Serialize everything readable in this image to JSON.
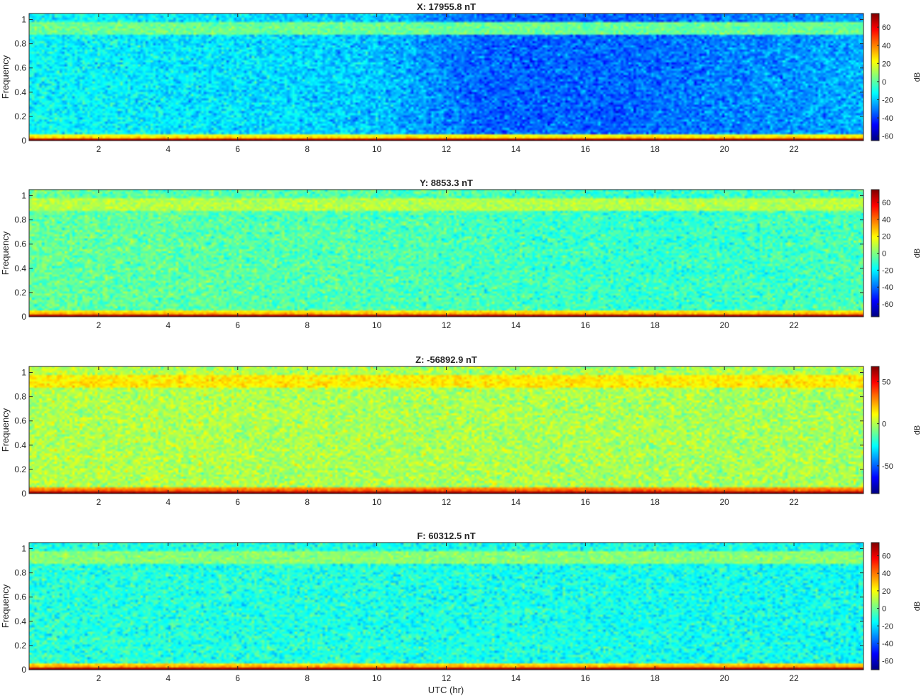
{
  "figure": {
    "xlabel": "UTC (hr)",
    "background": "#ffffff",
    "colormap": "jet"
  },
  "chart_data": [
    {
      "type": "heatmap",
      "title": "X: 17955.8 nT",
      "xlabel": "",
      "ylabel": "Frequency",
      "xlim": [
        0,
        24
      ],
      "ylim": [
        0,
        1.05
      ],
      "xticks": [
        "2",
        "4",
        "6",
        "8",
        "10",
        "12",
        "14",
        "16",
        "18",
        "20",
        "22"
      ],
      "yticks": [
        "0",
        "0.2",
        "0.4",
        "0.6",
        "0.8",
        "1"
      ],
      "colorbar": {
        "label": "dB",
        "range": [
          -65,
          75
        ],
        "ticks": [
          "60",
          "40",
          "20",
          "0",
          "-20",
          "-40",
          "-60"
        ]
      },
      "background_level_db": [
        {
          "utc": 0,
          "db": -12
        },
        {
          "utc": 6,
          "db": -16
        },
        {
          "utc": 10,
          "db": -20
        },
        {
          "utc": 13,
          "db": -34
        },
        {
          "utc": 17,
          "db": -34
        },
        {
          "utc": 20,
          "db": -30
        },
        {
          "utc": 24,
          "db": -24
        }
      ],
      "features": [
        {
          "name": "DC band",
          "frequency": [
            0,
            0.01
          ],
          "db": 70
        },
        {
          "name": "low-frequency band",
          "frequency": [
            0.01,
            0.05
          ],
          "db": 20
        },
        {
          "name": "high-frequency band",
          "frequency": [
            0.88,
            0.98
          ],
          "db": 2
        }
      ]
    },
    {
      "type": "heatmap",
      "title": "Y: 8853.3 nT",
      "xlabel": "",
      "ylabel": "Frequency",
      "xlim": [
        0,
        24
      ],
      "ylim": [
        0,
        1.05
      ],
      "xticks": [
        "2",
        "4",
        "6",
        "8",
        "10",
        "12",
        "14",
        "16",
        "18",
        "20",
        "22"
      ],
      "yticks": [
        "0",
        "0.2",
        "0.4",
        "0.6",
        "0.8",
        "1"
      ],
      "colorbar": {
        "label": "dB",
        "range": [
          -75,
          75
        ],
        "ticks": [
          "60",
          "40",
          "20",
          "0",
          "-20",
          "-40",
          "-60"
        ]
      },
      "background_level_db": [
        {
          "utc": 0,
          "db": -4
        },
        {
          "utc": 12,
          "db": -8
        },
        {
          "utc": 18,
          "db": -12
        },
        {
          "utc": 24,
          "db": -8
        }
      ],
      "features": [
        {
          "name": "DC band",
          "frequency": [
            0,
            0.01
          ],
          "db": 70
        },
        {
          "name": "low-frequency band",
          "frequency": [
            0.01,
            0.05
          ],
          "db": 22
        },
        {
          "name": "high-frequency band",
          "frequency": [
            0.88,
            0.98
          ],
          "db": 8
        }
      ]
    },
    {
      "type": "heatmap",
      "title": "Z: -56892.9 nT",
      "xlabel": "",
      "ylabel": "Frequency",
      "xlim": [
        0,
        24
      ],
      "ylim": [
        0,
        1.05
      ],
      "xticks": [
        "2",
        "4",
        "6",
        "8",
        "10",
        "12",
        "14",
        "16",
        "18",
        "20",
        "22"
      ],
      "yticks": [
        "0",
        "0.2",
        "0.4",
        "0.6",
        "0.8",
        "1"
      ],
      "colorbar": {
        "label": "dB",
        "range": [
          -83,
          68
        ],
        "ticks": [
          "50",
          "0",
          "-50"
        ]
      },
      "background_level_db": [
        {
          "utc": 0,
          "db": 0
        },
        {
          "utc": 12,
          "db": -1
        },
        {
          "utc": 24,
          "db": -2
        }
      ],
      "features": [
        {
          "name": "DC band",
          "frequency": [
            0,
            0.01
          ],
          "db": 65
        },
        {
          "name": "low-frequency band",
          "frequency": [
            0.01,
            0.05
          ],
          "db": 28
        },
        {
          "name": "high-frequency band",
          "frequency": [
            0.88,
            0.98
          ],
          "db": 14
        }
      ]
    },
    {
      "type": "heatmap",
      "title": "F: 60312.5 nT",
      "xlabel": "UTC (hr)",
      "ylabel": "Frequency",
      "xlim": [
        0,
        24
      ],
      "ylim": [
        0,
        1.05
      ],
      "xticks": [
        "2",
        "4",
        "6",
        "8",
        "10",
        "12",
        "14",
        "16",
        "18",
        "20",
        "22"
      ],
      "yticks": [
        "0",
        "0.2",
        "0.4",
        "0.6",
        "0.8",
        "1"
      ],
      "colorbar": {
        "label": "dB",
        "range": [
          -70,
          75
        ],
        "ticks": [
          "60",
          "40",
          "20",
          "0",
          "-20",
          "-40",
          "-60"
        ]
      },
      "background_level_db": [
        {
          "utc": 0,
          "db": -10
        },
        {
          "utc": 12,
          "db": -12
        },
        {
          "utc": 24,
          "db": -14
        }
      ],
      "features": [
        {
          "name": "DC band",
          "frequency": [
            0,
            0.01
          ],
          "db": 70
        },
        {
          "name": "low-frequency band",
          "frequency": [
            0.01,
            0.05
          ],
          "db": 25
        },
        {
          "name": "high-frequency band",
          "frequency": [
            0.88,
            0.98
          ],
          "db": 4
        }
      ]
    }
  ]
}
